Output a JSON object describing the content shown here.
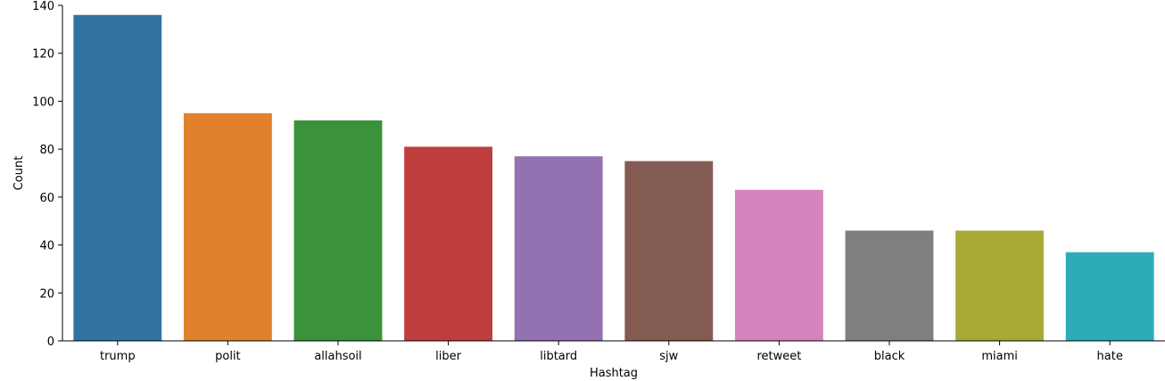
{
  "chart_data": {
    "type": "bar",
    "categories": [
      "trump",
      "polit",
      "allahsoil",
      "liber",
      "libtard",
      "sjw",
      "retweet",
      "black",
      "miami",
      "hate"
    ],
    "values": [
      136,
      95,
      92,
      81,
      77,
      75,
      63,
      46,
      46,
      37
    ],
    "colors": [
      "#3274a1",
      "#e1812c",
      "#3a923a",
      "#c03d3e",
      "#9372b2",
      "#845b53",
      "#d684bd",
      "#7f7f7f",
      "#a9aa35",
      "#2eabb8"
    ],
    "xlabel": "Hashtag",
    "ylabel": "Count",
    "ylim": [
      0,
      140
    ],
    "yticks": [
      0,
      20,
      40,
      60,
      80,
      100,
      120,
      140
    ],
    "grid": false,
    "spines": [
      "left",
      "bottom"
    ]
  }
}
